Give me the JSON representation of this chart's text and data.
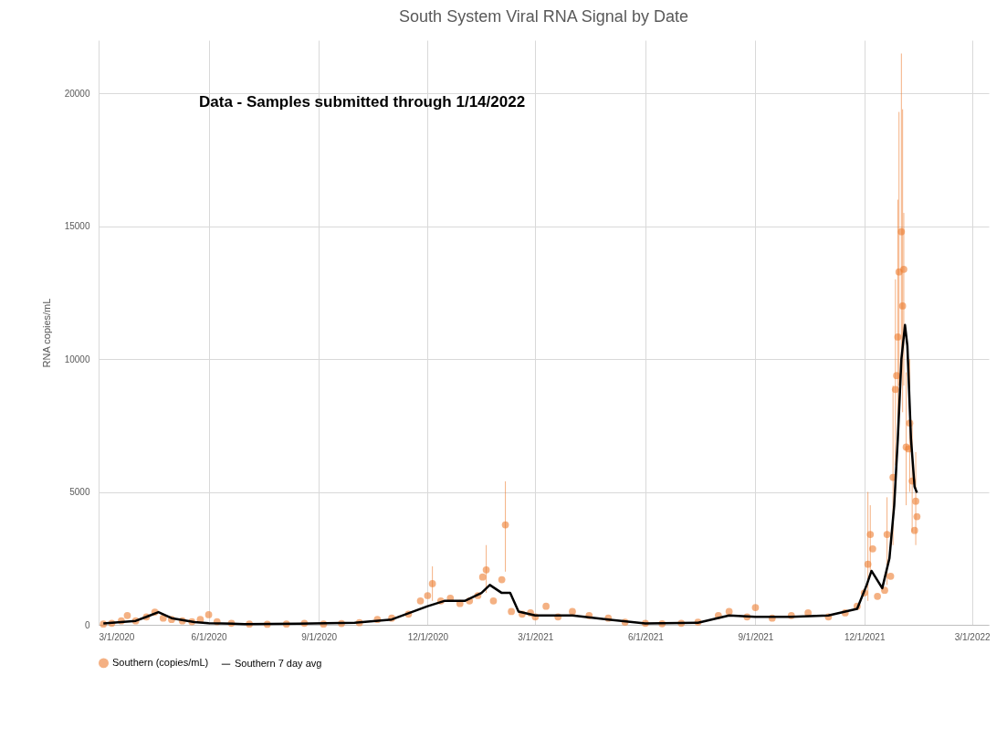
{
  "chart_data": {
    "type": "scatter",
    "title": "South System Viral RNA Signal by Date",
    "ylabel": "RNA copies/mL",
    "annotations": [
      "Data - Samples submitted through 1/14/2022"
    ],
    "xlim": [
      "2020-03-01",
      "2022-03-15"
    ],
    "xticks": [
      {
        "value": "2020-03-01",
        "label": "3/1/2020"
      },
      {
        "value": "2020-06-01",
        "label": "6/1/2020"
      },
      {
        "value": "2020-09-01",
        "label": "9/1/2020"
      },
      {
        "value": "2020-12-01",
        "label": "12/1/2020"
      },
      {
        "value": "2021-03-01",
        "label": "3/1/2021"
      },
      {
        "value": "2021-06-01",
        "label": "6/1/2021"
      },
      {
        "value": "2021-09-01",
        "label": "9/1/2021"
      },
      {
        "value": "2021-12-01",
        "label": "12/1/2021"
      },
      {
        "value": "2022-03-01",
        "label": "3/1/2022"
      }
    ],
    "ylim": [
      0,
      22000
    ],
    "yticks": [
      0,
      5000,
      10000,
      15000,
      20000
    ],
    "grid": true,
    "legend": "bottom",
    "series": [
      {
        "name": "Southern (copies/mL)",
        "color": "#ed7d31",
        "marker": "circle",
        "x": [
          "2020-03-05",
          "2020-03-12",
          "2020-03-20",
          "2020-03-25",
          "2020-04-01",
          "2020-04-10",
          "2020-04-17",
          "2020-04-24",
          "2020-05-01",
          "2020-05-10",
          "2020-05-18",
          "2020-05-25",
          "2020-06-01",
          "2020-06-08",
          "2020-06-20",
          "2020-07-05",
          "2020-07-20",
          "2020-08-05",
          "2020-08-20",
          "2020-09-05",
          "2020-09-20",
          "2020-10-05",
          "2020-10-20",
          "2020-11-01",
          "2020-11-15",
          "2020-11-25",
          "2020-12-01",
          "2020-12-05",
          "2020-12-12",
          "2020-12-20",
          "2020-12-28",
          "2021-01-05",
          "2021-01-12",
          "2021-01-16",
          "2021-01-19",
          "2021-01-25",
          "2021-02-01",
          "2021-02-04",
          "2021-02-09",
          "2021-02-18",
          "2021-02-25",
          "2021-03-01",
          "2021-03-10",
          "2021-03-20",
          "2021-04-01",
          "2021-04-15",
          "2021-05-01",
          "2021-05-15",
          "2021-06-01",
          "2021-06-15",
          "2021-07-01",
          "2021-07-15",
          "2021-08-01",
          "2021-08-10",
          "2021-08-25",
          "2021-09-01",
          "2021-09-15",
          "2021-10-01",
          "2021-10-15",
          "2021-11-01",
          "2021-11-15",
          "2021-11-25",
          "2021-12-01",
          "2021-12-04",
          "2021-12-06",
          "2021-12-08",
          "2021-12-12",
          "2021-12-18",
          "2021-12-20",
          "2021-12-23",
          "2021-12-25",
          "2021-12-27",
          "2021-12-28",
          "2021-12-29",
          "2021-12-30",
          "2022-01-01",
          "2022-01-02",
          "2022-01-03",
          "2022-01-05",
          "2022-01-07",
          "2022-01-08",
          "2022-01-10",
          "2022-01-12",
          "2022-01-13",
          "2022-01-14"
        ],
        "values": [
          30,
          60,
          150,
          350,
          150,
          300,
          480,
          250,
          200,
          150,
          120,
          200,
          380,
          120,
          60,
          30,
          20,
          30,
          60,
          30,
          50,
          80,
          200,
          250,
          400,
          900,
          1100,
          1550,
          900,
          1000,
          800,
          900,
          1100,
          1800,
          2070,
          900,
          1700,
          3760,
          500,
          400,
          450,
          300,
          700,
          300,
          500,
          350,
          250,
          100,
          60,
          40,
          60,
          100,
          350,
          500,
          300,
          650,
          250,
          350,
          450,
          300,
          450,
          700,
          1200,
          2280,
          3400,
          2860,
          1070,
          1300,
          3400,
          1830,
          5550,
          8860,
          9380,
          10830,
          13280,
          14790,
          12000,
          13380,
          6690,
          6620,
          7590,
          5410,
          3550,
          4650,
          4070
        ],
        "errors": [
          null,
          null,
          null,
          null,
          null,
          null,
          null,
          null,
          null,
          null,
          null,
          null,
          null,
          null,
          null,
          null,
          null,
          null,
          null,
          null,
          null,
          null,
          null,
          null,
          null,
          null,
          null,
          [
            900,
            2200
          ],
          null,
          null,
          null,
          null,
          null,
          null,
          [
            1200,
            3000
          ],
          null,
          null,
          [
            2000,
            5400
          ],
          null,
          null,
          null,
          null,
          null,
          null,
          null,
          null,
          null,
          null,
          null,
          null,
          null,
          null,
          null,
          null,
          null,
          null,
          null,
          null,
          null,
          null,
          null,
          null,
          null,
          [
            900,
            5000
          ],
          [
            2000,
            4500
          ],
          null,
          null,
          null,
          [
            1500,
            4800
          ],
          null,
          [
            3000,
            9000
          ],
          [
            6000,
            13000
          ],
          null,
          [
            7000,
            16000
          ],
          [
            9000,
            19300
          ],
          [
            10000,
            21500
          ],
          [
            8000,
            19400
          ],
          [
            9000,
            15500
          ],
          [
            4500,
            9500
          ],
          null,
          [
            5000,
            10000
          ],
          [
            3500,
            7500
          ],
          null,
          [
            3000,
            6500
          ],
          null
        ]
      },
      {
        "name": "Southern 7 day avg",
        "type": "line",
        "color": "#000000",
        "marker": "none",
        "x": [
          "2020-03-05",
          "2020-04-01",
          "2020-04-10",
          "2020-04-20",
          "2020-05-01",
          "2020-05-20",
          "2020-06-01",
          "2020-07-01",
          "2020-08-15",
          "2020-10-01",
          "2020-11-01",
          "2020-12-01",
          "2020-12-15",
          "2021-01-01",
          "2021-01-15",
          "2021-01-22",
          "2021-02-01",
          "2021-02-08",
          "2021-02-15",
          "2021-03-01",
          "2021-04-01",
          "2021-05-01",
          "2021-06-01",
          "2021-07-15",
          "2021-08-10",
          "2021-09-01",
          "2021-10-01",
          "2021-11-01",
          "2021-11-25",
          "2021-12-03",
          "2021-12-07",
          "2021-12-16",
          "2021-12-22",
          "2021-12-26",
          "2021-12-29",
          "2022-01-01",
          "2022-01-04",
          "2022-01-06",
          "2022-01-09",
          "2022-01-12",
          "2022-01-14"
        ],
        "values": [
          50,
          150,
          300,
          480,
          250,
          100,
          60,
          30,
          40,
          80,
          200,
          700,
          900,
          900,
          1200,
          1500,
          1200,
          1200,
          500,
          350,
          350,
          200,
          50,
          80,
          350,
          300,
          300,
          350,
          600,
          1500,
          2030,
          1380,
          2500,
          4500,
          7000,
          10000,
          11280,
          10500,
          7000,
          5200,
          4970
        ]
      }
    ]
  }
}
